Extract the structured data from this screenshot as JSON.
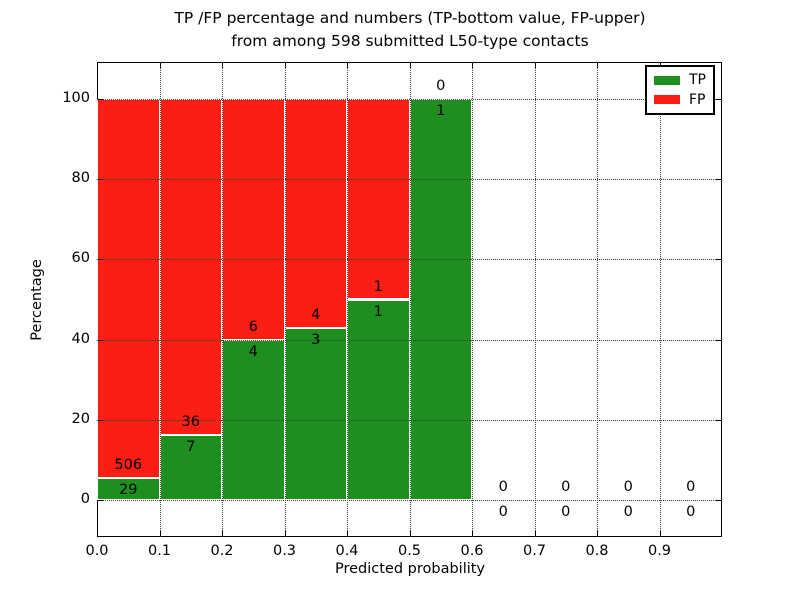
{
  "figure": {
    "title_line1": "TP /FP percentage and numbers (TP-bottom value, FP-upper)",
    "title_line2": "from among 598 submitted L50-type contacts"
  },
  "chart_data": {
    "type": "bar",
    "stacked": true,
    "title": "TP /FP percentage and numbers (TP-bottom value, FP-upper)\nfrom among 598 submitted L50-type contacts",
    "xlabel": "Predicted probability",
    "ylabel": "Percentage",
    "total_submitted": 598,
    "bin_edges": [
      0.0,
      0.1,
      0.2,
      0.3,
      0.4,
      0.5,
      0.6,
      0.7,
      0.8,
      0.9,
      1.0
    ],
    "categories": [
      "0.0-0.1",
      "0.1-0.2",
      "0.2-0.3",
      "0.3-0.4",
      "0.4-0.5",
      "0.5-0.6",
      "0.6-0.7",
      "0.7-0.8",
      "0.8-0.9",
      "0.9-1.0"
    ],
    "series": [
      {
        "name": "TP",
        "color": "#1e8f1f",
        "counts": [
          29,
          7,
          4,
          3,
          1,
          1,
          0,
          0,
          0,
          0
        ],
        "percentages": [
          5.42,
          16.28,
          40.0,
          42.86,
          50.0,
          100.0,
          0,
          0,
          0,
          0
        ]
      },
      {
        "name": "FP",
        "color": "#fb1e12",
        "counts": [
          506,
          36,
          6,
          4,
          1,
          0,
          0,
          0,
          0,
          0
        ],
        "percentages": [
          94.58,
          83.72,
          60.0,
          57.14,
          50.0,
          0.0,
          0,
          0,
          0,
          0
        ]
      }
    ],
    "xticks": [
      "0.0",
      "0.1",
      "0.2",
      "0.3",
      "0.4",
      "0.5",
      "0.6",
      "0.7",
      "0.8",
      "0.9"
    ],
    "xtick_values": [
      0.0,
      0.1,
      0.2,
      0.3,
      0.4,
      0.5,
      0.6,
      0.7,
      0.8,
      0.9
    ],
    "yticks": [
      "0",
      "20",
      "40",
      "60",
      "80",
      "100"
    ],
    "ytick_values": [
      0,
      20,
      40,
      60,
      80,
      100
    ],
    "xlim": [
      0.0,
      1.0
    ],
    "ylim": [
      -9.2,
      109.2
    ],
    "grid": "dotted",
    "bar_edge_color": "#ffffff",
    "legend": {
      "position": "upper right",
      "entries": [
        "TP",
        "FP"
      ]
    }
  }
}
